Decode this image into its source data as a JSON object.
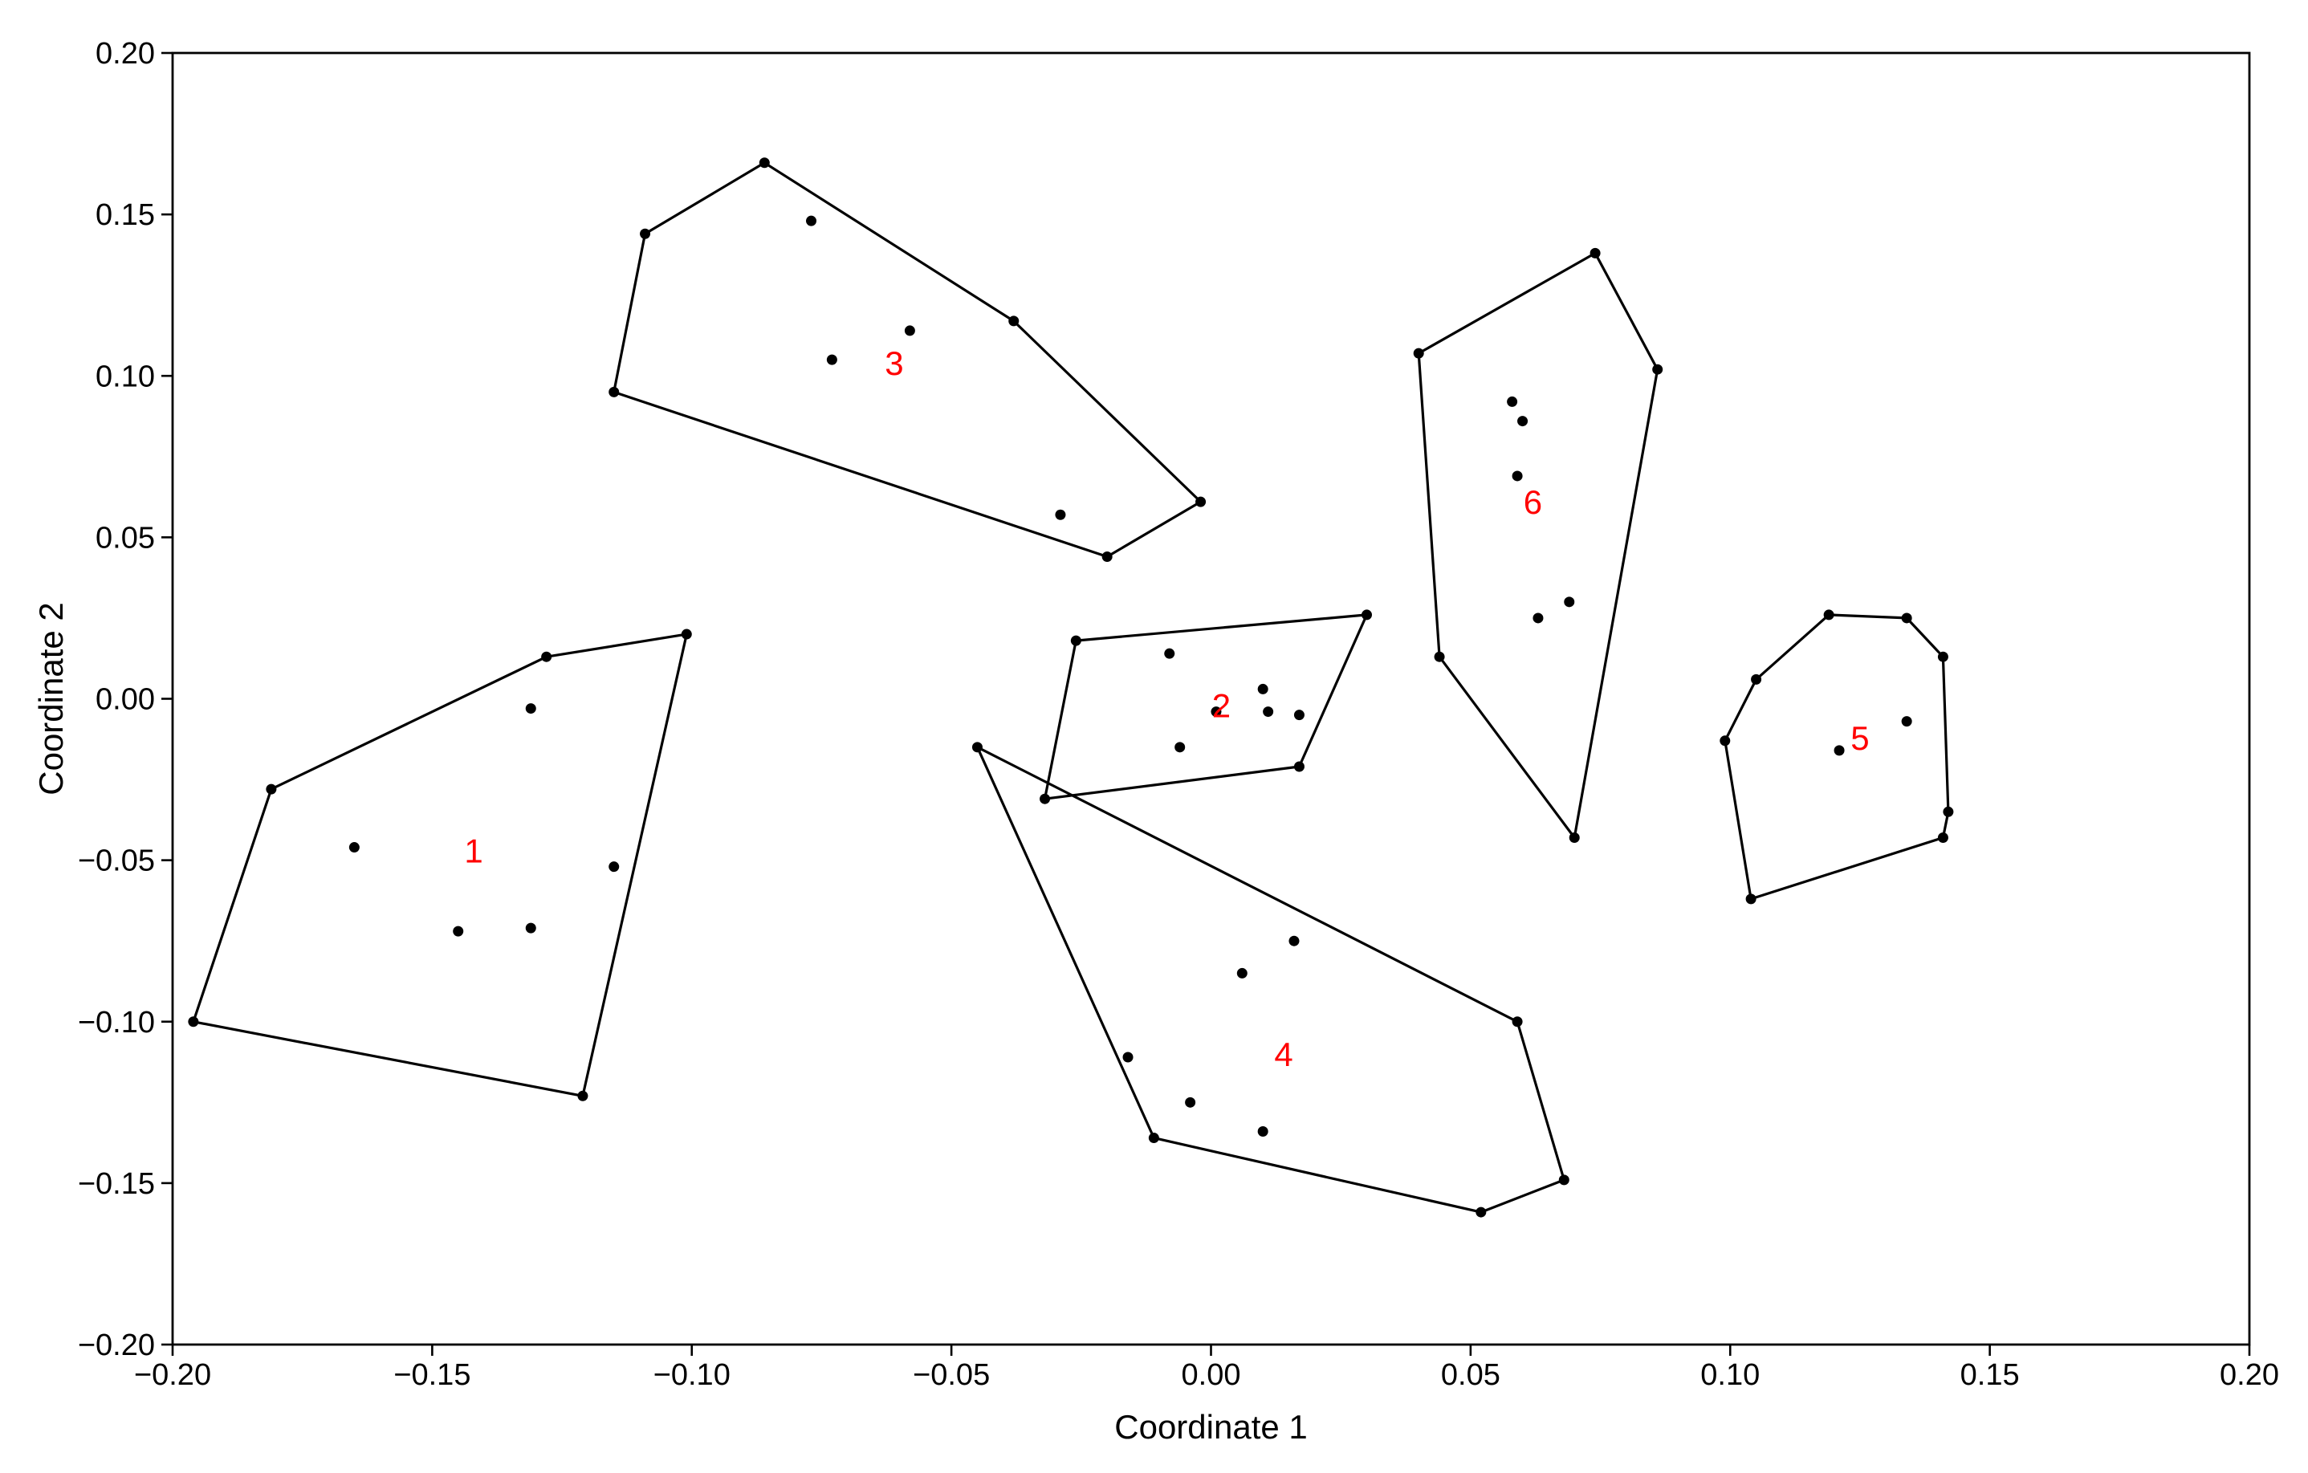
{
  "chart_data": {
    "type": "scatter",
    "title": "",
    "xlabel": "Coordinate 1",
    "ylabel": "Coordinate 2",
    "xlim": [
      -0.2,
      0.2
    ],
    "ylim": [
      -0.2,
      0.2
    ],
    "x_ticks": [
      -0.2,
      -0.15,
      -0.1,
      -0.05,
      0.0,
      0.05,
      0.1,
      0.15,
      0.2
    ],
    "y_ticks": [
      -0.2,
      -0.15,
      -0.1,
      -0.05,
      0.0,
      0.05,
      0.1,
      0.15,
      0.2
    ],
    "x_tick_labels": [
      "−0.20",
      "−0.15",
      "−0.10",
      "−0.05",
      "0.00",
      "0.05",
      "0.10",
      "0.15",
      "0.20"
    ],
    "y_tick_labels": [
      "−0.20",
      "−0.15",
      "−0.10",
      "−0.05",
      "0.00",
      "0.05",
      "0.10",
      "0.15",
      "0.20"
    ],
    "grid": false,
    "label_color": "#ff0000",
    "point_color": "#000000",
    "hull_color": "#000000",
    "clusters": [
      {
        "label": "1",
        "label_pos": [
          -0.142,
          -0.047
        ],
        "hull": [
          [
            -0.196,
            -0.1
          ],
          [
            -0.181,
            -0.028
          ],
          [
            -0.128,
            0.013
          ],
          [
            -0.101,
            0.02
          ],
          [
            -0.121,
            -0.123
          ]
        ],
        "interior": [
          [
            -0.165,
            -0.046
          ],
          [
            -0.131,
            -0.003
          ],
          [
            -0.115,
            -0.052
          ],
          [
            -0.145,
            -0.072
          ],
          [
            -0.131,
            -0.071
          ]
        ]
      },
      {
        "label": "2",
        "label_pos": [
          0.002,
          -0.002
        ],
        "hull": [
          [
            -0.032,
            -0.031
          ],
          [
            -0.026,
            0.018
          ],
          [
            0.03,
            0.026
          ],
          [
            0.017,
            -0.021
          ]
        ],
        "interior": [
          [
            -0.008,
            0.014
          ],
          [
            -0.006,
            -0.015
          ],
          [
            0.001,
            -0.004
          ],
          [
            0.01,
            0.003
          ],
          [
            0.011,
            -0.004
          ],
          [
            0.017,
            -0.005
          ]
        ]
      },
      {
        "label": "3",
        "label_pos": [
          -0.061,
          0.104
        ],
        "hull": [
          [
            -0.115,
            0.095
          ],
          [
            -0.109,
            0.144
          ],
          [
            -0.086,
            0.166
          ],
          [
            -0.038,
            0.117
          ],
          [
            -0.002,
            0.061
          ],
          [
            -0.02,
            0.044
          ]
        ],
        "interior": [
          [
            -0.077,
            0.148
          ],
          [
            -0.073,
            0.105
          ],
          [
            -0.058,
            0.114
          ],
          [
            -0.029,
            0.057
          ]
        ]
      },
      {
        "label": "4",
        "label_pos": [
          0.014,
          -0.11
        ],
        "hull": [
          [
            -0.045,
            -0.015
          ],
          [
            0.059,
            -0.1
          ],
          [
            0.068,
            -0.149
          ],
          [
            0.052,
            -0.159
          ],
          [
            -0.011,
            -0.136
          ]
        ],
        "interior": [
          [
            0.006,
            -0.085
          ],
          [
            0.016,
            -0.075
          ],
          [
            -0.016,
            -0.111
          ],
          [
            -0.004,
            -0.125
          ],
          [
            0.01,
            -0.134
          ]
        ]
      },
      {
        "label": "5",
        "label_pos": [
          0.125,
          -0.012
        ],
        "hull": [
          [
            0.099,
            -0.013
          ],
          [
            0.105,
            0.006
          ],
          [
            0.119,
            0.026
          ],
          [
            0.134,
            0.025
          ],
          [
            0.141,
            0.013
          ],
          [
            0.142,
            -0.035
          ],
          [
            0.141,
            -0.043
          ],
          [
            0.104,
            -0.062
          ]
        ],
        "interior": [
          [
            0.121,
            -0.016
          ],
          [
            0.134,
            -0.007
          ]
        ]
      },
      {
        "label": "6",
        "label_pos": [
          0.062,
          0.061
        ],
        "hull": [
          [
            0.04,
            0.107
          ],
          [
            0.074,
            0.138
          ],
          [
            0.086,
            0.102
          ],
          [
            0.07,
            -0.043
          ],
          [
            0.044,
            0.013
          ]
        ],
        "interior": [
          [
            0.058,
            0.092
          ],
          [
            0.06,
            0.086
          ],
          [
            0.059,
            0.069
          ],
          [
            0.063,
            0.025
          ],
          [
            0.069,
            0.03
          ]
        ]
      }
    ]
  }
}
